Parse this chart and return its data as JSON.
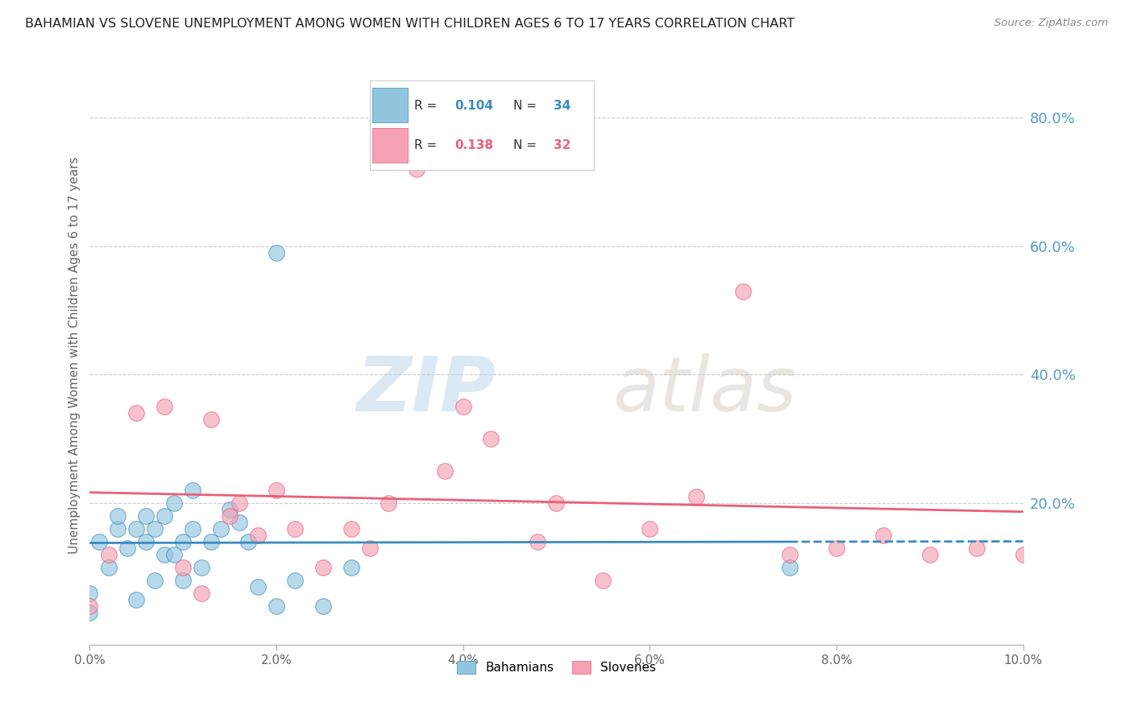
{
  "title": "BAHAMIAN VS SLOVENE UNEMPLOYMENT AMONG WOMEN WITH CHILDREN AGES 6 TO 17 YEARS CORRELATION CHART",
  "source": "Source: ZipAtlas.com",
  "ylabel": "Unemployment Among Women with Children Ages 6 to 17 years",
  "legend_label1": "Bahamians",
  "legend_label2": "Slovenes",
  "R1": 0.104,
  "N1": 34,
  "R2": 0.138,
  "N2": 32,
  "xlim": [
    0.0,
    0.1
  ],
  "ylim": [
    -0.02,
    0.88
  ],
  "yticks_right": [
    0.2,
    0.4,
    0.6,
    0.8
  ],
  "ytick_labels_right": [
    "20.0%",
    "40.0%",
    "60.0%",
    "80.0%"
  ],
  "xticks": [
    0.0,
    0.02,
    0.04,
    0.06,
    0.08,
    0.1
  ],
  "xtick_labels": [
    "0.0%",
    "2.0%",
    "4.0%",
    "6.0%",
    "8.0%",
    "10.0%"
  ],
  "color_blue": "#92c5de",
  "color_pink": "#f4a0b5",
  "color_blue_line": "#3a8bbf",
  "color_pink_line": "#e8607a",
  "color_right_axis": "#5599cc",
  "watermark_zip": "ZIP",
  "watermark_atlas": "atlas",
  "bahamians_x": [
    0.0,
    0.0,
    0.001,
    0.002,
    0.003,
    0.003,
    0.004,
    0.005,
    0.005,
    0.006,
    0.006,
    0.007,
    0.007,
    0.008,
    0.008,
    0.009,
    0.009,
    0.01,
    0.01,
    0.011,
    0.011,
    0.012,
    0.013,
    0.014,
    0.015,
    0.016,
    0.017,
    0.018,
    0.02,
    0.022,
    0.025,
    0.028,
    0.075,
    0.02
  ],
  "bahamians_y": [
    0.03,
    0.06,
    0.14,
    0.1,
    0.16,
    0.18,
    0.13,
    0.05,
    0.16,
    0.14,
    0.18,
    0.08,
    0.16,
    0.12,
    0.18,
    0.12,
    0.2,
    0.08,
    0.14,
    0.16,
    0.22,
    0.1,
    0.14,
    0.16,
    0.19,
    0.17,
    0.14,
    0.07,
    0.04,
    0.08,
    0.04,
    0.1,
    0.1,
    0.59
  ],
  "slovenes_x": [
    0.0,
    0.002,
    0.005,
    0.008,
    0.01,
    0.012,
    0.013,
    0.015,
    0.016,
    0.018,
    0.02,
    0.022,
    0.025,
    0.028,
    0.03,
    0.032,
    0.035,
    0.038,
    0.04,
    0.043,
    0.048,
    0.05,
    0.055,
    0.06,
    0.065,
    0.07,
    0.075,
    0.08,
    0.085,
    0.09,
    0.095,
    0.1
  ],
  "slovenes_y": [
    0.04,
    0.12,
    0.34,
    0.35,
    0.1,
    0.06,
    0.33,
    0.18,
    0.2,
    0.15,
    0.22,
    0.16,
    0.1,
    0.16,
    0.13,
    0.2,
    0.72,
    0.25,
    0.35,
    0.3,
    0.14,
    0.2,
    0.08,
    0.16,
    0.21,
    0.53,
    0.12,
    0.13,
    0.15,
    0.12,
    0.13,
    0.12
  ],
  "blue_line_solid_end": 0.075,
  "blue_line_dashed_start": 0.075
}
